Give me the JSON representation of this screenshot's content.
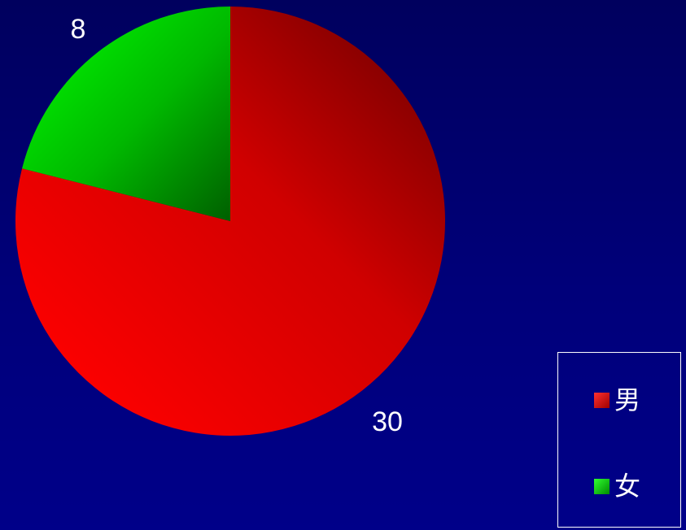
{
  "chart_data": {
    "type": "pie",
    "categories": [
      "男",
      "女"
    ],
    "values": [
      30,
      8
    ],
    "colors": [
      "#ff0000",
      "#00cc00"
    ],
    "data_labels": [
      "30",
      "8"
    ],
    "legend_position": "bottom-right",
    "background_color": "#000080"
  }
}
